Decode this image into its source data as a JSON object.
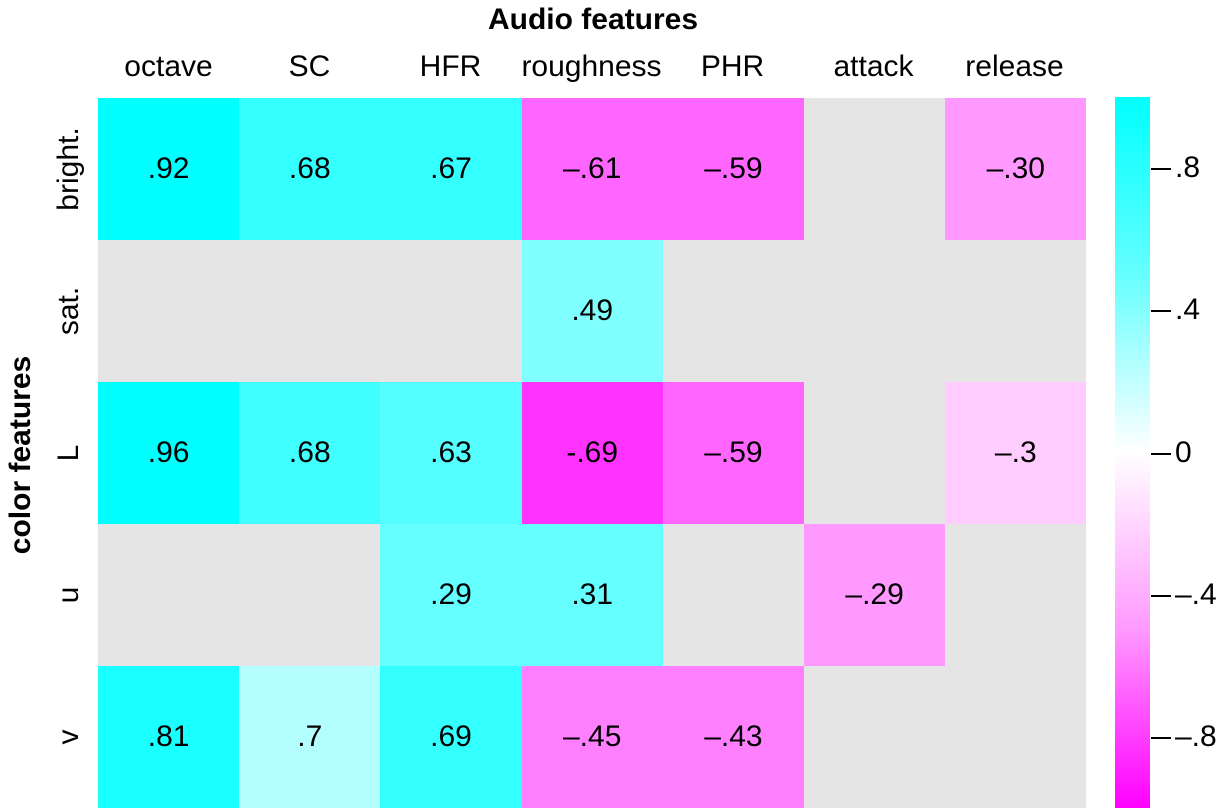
{
  "chart_data": {
    "type": "heatmap",
    "title": "Audio features",
    "xlabel": "Audio features",
    "ylabel": "color features",
    "x_categories": [
      "octave",
      "SC",
      "HFR",
      "roughness",
      "PHR",
      "attack",
      "release"
    ],
    "y_categories": [
      "bright.",
      "sat.",
      "L",
      "u",
      "v"
    ],
    "values": [
      [
        0.92,
        0.68,
        0.67,
        -0.61,
        -0.59,
        null,
        -0.3
      ],
      [
        null,
        null,
        null,
        0.49,
        null,
        null,
        null
      ],
      [
        0.96,
        0.68,
        0.63,
        -0.69,
        -0.59,
        null,
        -0.3
      ],
      [
        null,
        null,
        0.29,
        0.31,
        null,
        -0.29,
        null
      ],
      [
        0.81,
        0.7,
        0.69,
        -0.45,
        -0.43,
        null,
        null
      ]
    ],
    "labels": [
      [
        ".92",
        ".68",
        ".67",
        "–.61",
        "–.59",
        "",
        "–.30"
      ],
      [
        "",
        "",
        "",
        ".49",
        "",
        "",
        ""
      ],
      [
        ".96",
        ".68",
        ".63",
        "-.69",
        "–.59",
        "",
        "–.3"
      ],
      [
        "",
        "",
        ".29",
        ".31",
        "",
        "–.29",
        ""
      ],
      [
        ".81",
        ".7",
        ".69",
        "–.45",
        "–.43",
        "",
        ""
      ]
    ],
    "cell_colors": [
      [
        "#00ffff",
        "#33ffff",
        "#33ffff",
        "#ff66ff",
        "#ff66ff",
        "#e5e5e5",
        "#ff99ff"
      ],
      [
        "#e5e5e5",
        "#e5e5e5",
        "#e5e5e5",
        "#80ffff",
        "#e5e5e5",
        "#e5e5e5",
        "#e5e5e5"
      ],
      [
        "#00ffff",
        "#40ffff",
        "#55ffff",
        "#ff33ff",
        "#ff66ff",
        "#e5e5e5",
        "#ffccff"
      ],
      [
        "#e5e5e5",
        "#e5e5e5",
        "#66ffff",
        "#66ffff",
        "#e5e5e5",
        "#ff99ff",
        "#e5e5e5"
      ],
      [
        "#1affff",
        "#b3ffff",
        "#33ffff",
        "#ff80ff",
        "#ff80ff",
        "#e5e5e5",
        "#e5e5e5"
      ]
    ],
    "missing_color": "#e5e5e5",
    "colorbar": {
      "range": [
        -1,
        1
      ],
      "ticks": [
        ".8",
        ".4",
        "0",
        "–.4",
        "–.8"
      ],
      "tick_values": [
        0.8,
        0.4,
        0,
        -0.4,
        -0.8
      ],
      "positive_color": "#00ffff",
      "zero_color": "#ffffff",
      "negative_color": "#ff00ff"
    }
  }
}
